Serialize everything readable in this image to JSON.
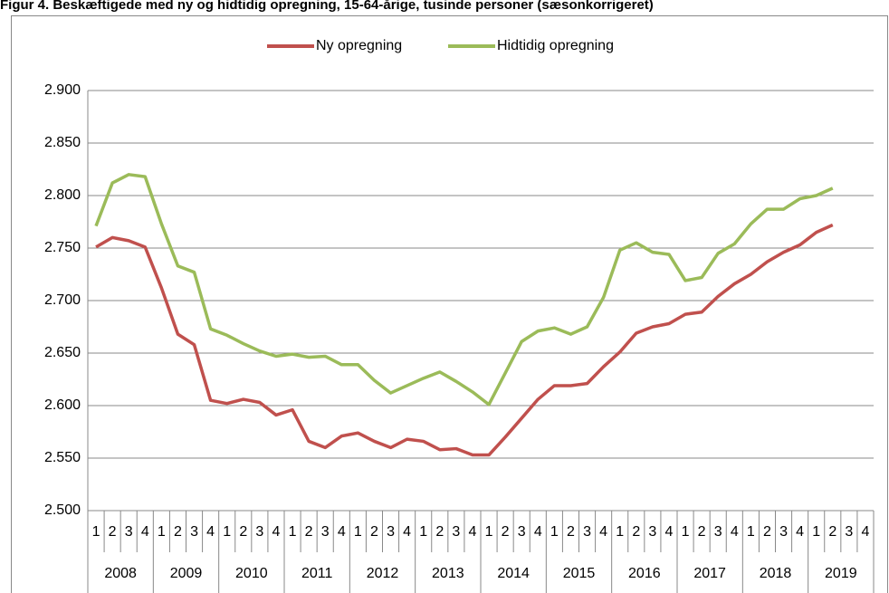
{
  "chart_data": {
    "type": "line",
    "title": "Figur 4. Beskæftigede med ny og hidtidig opregning, 15-64-årige, tusinde personer (sæsonkorrigeret)",
    "categories": [
      "1",
      "2",
      "3",
      "4",
      "1",
      "2",
      "3",
      "4",
      "1",
      "2",
      "3",
      "4",
      "1",
      "2",
      "3",
      "4",
      "1",
      "2",
      "3",
      "4",
      "1",
      "2",
      "3",
      "4",
      "1",
      "2",
      "3",
      "4",
      "1",
      "2",
      "3",
      "4",
      "1",
      "2",
      "3",
      "4",
      "1",
      "2",
      "3",
      "4",
      "1",
      "2",
      "3",
      "4",
      "1",
      "2",
      "3",
      "4"
    ],
    "category_groups": [
      "2008",
      "2009",
      "2010",
      "2011",
      "2012",
      "2013",
      "2014",
      "2015",
      "2016",
      "2017",
      "2018",
      "2019"
    ],
    "series": [
      {
        "name": "Ny opregning",
        "color": "#c0504d",
        "values": [
          2751,
          2760,
          2757,
          2751,
          2712,
          2668,
          2658,
          2605,
          2602,
          2606,
          2603,
          2591,
          2596,
          2566,
          2560,
          2571,
          2574,
          2566,
          2560,
          2568,
          2566,
          2558,
          2559,
          2553,
          2553,
          2570,
          2588,
          2606,
          2619,
          2619,
          2621,
          2637,
          2651,
          2669,
          2675,
          2678,
          2687,
          2689,
          2704,
          2716,
          2725,
          2737,
          2746,
          2753,
          2765,
          2772,
          null,
          null
        ]
      },
      {
        "name": "Hidtidig opregning",
        "color": "#9bbb59",
        "values": [
          2771,
          2812,
          2820,
          2818,
          2773,
          2733,
          2727,
          2673,
          2667,
          2659,
          2652,
          2647,
          2649,
          2646,
          2647,
          2639,
          2639,
          2624,
          2612,
          2619,
          2626,
          2632,
          2623,
          2613,
          2601,
          2631,
          2661,
          2671,
          2674,
          2668,
          2675,
          2703,
          2748,
          2755,
          2746,
          2744,
          2719,
          2722,
          2745,
          2754,
          2773,
          2787,
          2787,
          2797,
          2800,
          2807,
          null,
          null
        ]
      }
    ],
    "ylim": [
      2500,
      2900
    ],
    "yticks": [
      {
        "value": 2500,
        "label": "2.500"
      },
      {
        "value": 2550,
        "label": "2.550"
      },
      {
        "value": 2600,
        "label": "2.600"
      },
      {
        "value": 2650,
        "label": "2.650"
      },
      {
        "value": 2700,
        "label": "2.700"
      },
      {
        "value": 2750,
        "label": "2.750"
      },
      {
        "value": 2800,
        "label": "2.800"
      },
      {
        "value": 2850,
        "label": "2.850"
      },
      {
        "value": 2900,
        "label": "2.900"
      }
    ],
    "grid": true,
    "legend": "top"
  }
}
